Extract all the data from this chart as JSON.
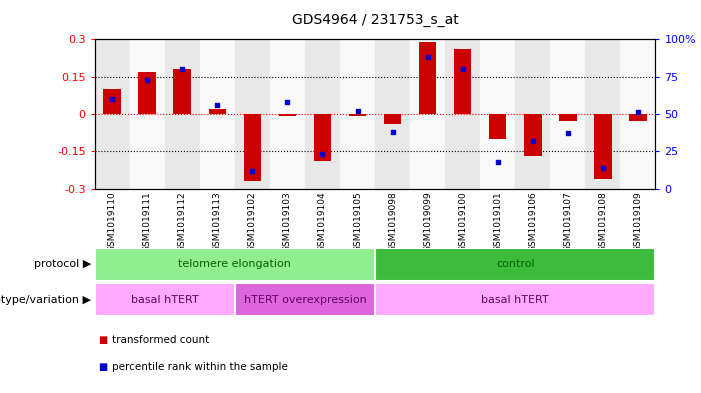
{
  "title": "GDS4964 / 231753_s_at",
  "samples": [
    "GSM1019110",
    "GSM1019111",
    "GSM1019112",
    "GSM1019113",
    "GSM1019102",
    "GSM1019103",
    "GSM1019104",
    "GSM1019105",
    "GSM1019098",
    "GSM1019099",
    "GSM1019100",
    "GSM1019101",
    "GSM1019106",
    "GSM1019107",
    "GSM1019108",
    "GSM1019109"
  ],
  "transformed_count": [
    0.1,
    0.17,
    0.18,
    0.02,
    -0.27,
    -0.01,
    -0.19,
    -0.01,
    -0.04,
    0.29,
    0.26,
    -0.1,
    -0.17,
    -0.03,
    -0.26,
    -0.03
  ],
  "percentile_rank": [
    60,
    73,
    80,
    56,
    12,
    58,
    23,
    52,
    38,
    88,
    80,
    18,
    32,
    37,
    14,
    51
  ],
  "protocol_groups": [
    {
      "label": "telomere elongation",
      "start": 0,
      "end": 8,
      "color": "#90ee90"
    },
    {
      "label": "control",
      "start": 8,
      "end": 16,
      "color": "#3dbb3d"
    }
  ],
  "genotype_groups": [
    {
      "label": "basal hTERT",
      "start": 0,
      "end": 4,
      "color": "#ffaaff"
    },
    {
      "label": "hTERT overexpression",
      "start": 4,
      "end": 8,
      "color": "#dd66dd"
    },
    {
      "label": "basal hTERT",
      "start": 8,
      "end": 16,
      "color": "#ffaaff"
    }
  ],
  "bar_color": "#cc0000",
  "dot_color": "#0000cc",
  "ylim": [
    -0.3,
    0.3
  ],
  "y2lim": [
    0,
    100
  ],
  "yticks": [
    -0.3,
    -0.15,
    0,
    0.15,
    0.3
  ],
  "y2ticks": [
    0,
    25,
    50,
    75,
    100
  ],
  "y2ticklabels": [
    "0",
    "25",
    "50",
    "75",
    "100%"
  ],
  "hlines_black": [
    0.15,
    -0.15
  ],
  "hline_red": 0.0,
  "plot_bg_color": "#ffffff",
  "col_bg_even": "#e8e8e8",
  "col_bg_odd": "#f8f8f8",
  "bar_width": 0.5,
  "legend_items": [
    {
      "label": "transformed count",
      "color": "#cc0000"
    },
    {
      "label": "percentile rank within the sample",
      "color": "#0000cc"
    }
  ]
}
